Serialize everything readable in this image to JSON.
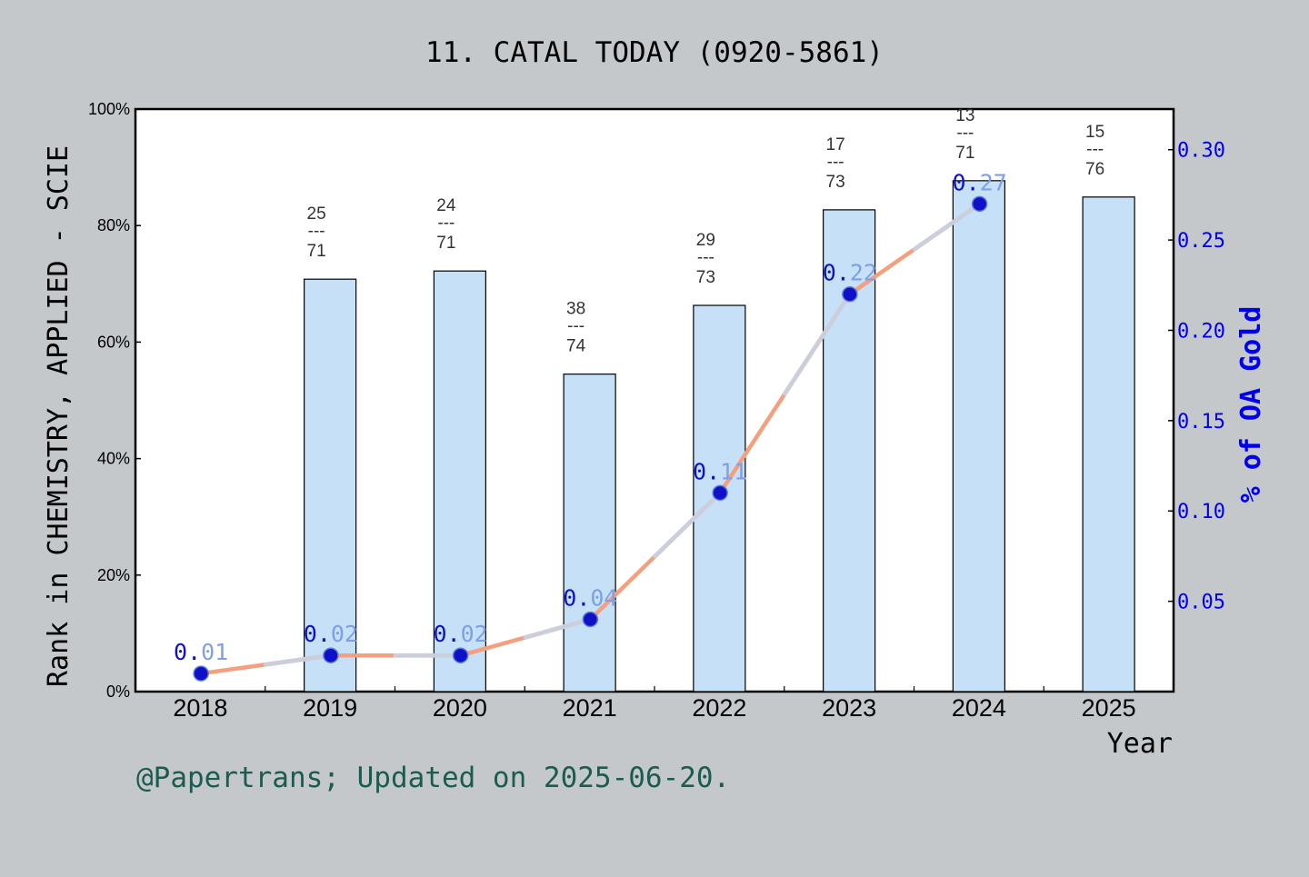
{
  "chart_data": {
    "type": "bar",
    "title": "11. CATAL TODAY (0920-5861)",
    "xlabel": "Year",
    "ylabel": "Rank in CHEMISTRY, APPLIED - SCIE",
    "y2label": "% of OA Gold",
    "footer": "@Papertrans; Updated on 2025-06-20.",
    "categories": [
      "2018",
      "2019",
      "2020",
      "2021",
      "2022",
      "2023",
      "2024",
      "2025"
    ],
    "ylim": [
      0,
      100
    ],
    "yticks": [
      "0%",
      "20%",
      "40%",
      "60%",
      "80%",
      "100%"
    ],
    "y2lim": [
      0,
      0.3225
    ],
    "y2ticks": [
      "0.05",
      "0.10",
      "0.15",
      "0.20",
      "0.25",
      "0.30"
    ],
    "series": [
      {
        "kind": "bar",
        "values": [
          null,
          70.8,
          72.2,
          54.5,
          66.3,
          82.7,
          87.7,
          84.9
        ],
        "labels": [
          null,
          {
            "top": "25",
            "sep": "---",
            "bottom": "71"
          },
          {
            "top": "24",
            "sep": "---",
            "bottom": "71"
          },
          {
            "top": "38",
            "sep": "---",
            "bottom": "74"
          },
          {
            "top": "29",
            "sep": "---",
            "bottom": "73"
          },
          {
            "top": "17",
            "sep": "---",
            "bottom": "73"
          },
          {
            "top": "13",
            "sep": "---",
            "bottom": "71"
          },
          {
            "top": "15",
            "sep": "---",
            "bottom": "76"
          }
        ]
      },
      {
        "kind": "line",
        "axis": "right",
        "values": [
          null,
          0.01,
          0.02,
          0.02,
          0.04,
          0.11,
          0.22,
          0.27
        ],
        "labels": [
          null,
          "0.01",
          "0.02",
          "0.02",
          "0.04",
          "0.11",
          "0.22",
          "0.27"
        ]
      }
    ],
    "colors": {
      "background": "#c4c8cb",
      "plot_background": "#ffffff",
      "bar_fill": "#c5e0f7",
      "bar_stroke": "#000000",
      "line_color": "#f4a07e",
      "line_overlay": "#c9d3e6",
      "marker_fill": "#1010c8",
      "right_axis": "#0000ee",
      "footer": "#1a5c50"
    },
    "grid": false,
    "legend": "none"
  }
}
